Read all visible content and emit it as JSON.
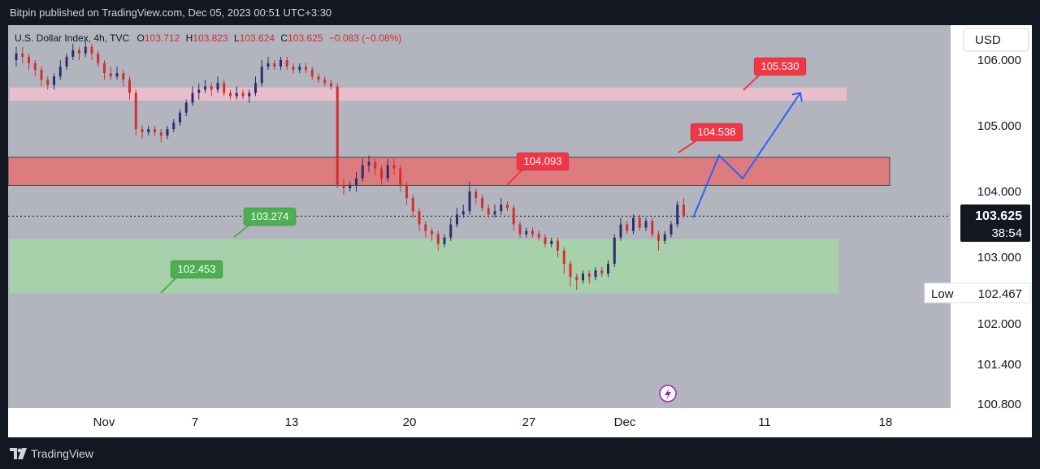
{
  "publisher_line": "Bitpin published on TradingView.com, Dec 05, 2023 00:51 UTC+3:30",
  "brand": "TradingView",
  "header": {
    "symbol": "U.S. Dollar Index, 4h, TVC",
    "open_label": "O",
    "open": "103.712",
    "high_label": "H",
    "high": "103.823",
    "low_label": "L",
    "low": "103.624",
    "close_label": "C",
    "close": "103.625",
    "change": "−0.083 (−0.08%)"
  },
  "currency": "USD",
  "colors": {
    "up": "#2a2e6e",
    "down": "#d32f2f",
    "resistance_zone": "#e57373",
    "support_zone": "#a5d6a7",
    "target_zone": "#f2bfcf",
    "projection": "#2962ff",
    "background": "#b2b5be",
    "red_label": "#f23645",
    "green_label": "#4caf50"
  },
  "chart_data": {
    "type": "candlestick",
    "title": "U.S. Dollar Index, 4h, TVC",
    "ylim": [
      100.8,
      106.3
    ],
    "y_ticks": [
      "106.000",
      "105.000",
      "104.000",
      "103.000",
      "102.000",
      "101.400",
      "100.800"
    ],
    "x_ticks": [
      "Nov",
      "7",
      "13",
      "20",
      "27",
      "Dec",
      "11",
      "18"
    ],
    "last_price": "103.625",
    "countdown": "38:54",
    "low_marker": {
      "label": "Low",
      "value": "102.467"
    },
    "zones": [
      {
        "name": "target",
        "from": 105.38,
        "to": 105.58
      },
      {
        "name": "resistance",
        "from": 104.093,
        "to": 104.52
      },
      {
        "name": "support",
        "from": 102.453,
        "to": 103.274
      }
    ],
    "callouts": [
      {
        "text": "105.530",
        "color": "red",
        "value": 105.53
      },
      {
        "text": "104.538",
        "color": "red",
        "value": 104.538
      },
      {
        "text": "104.093",
        "color": "red",
        "value": 104.093
      },
      {
        "text": "103.274",
        "color": "green",
        "value": 103.274
      },
      {
        "text": "102.453",
        "color": "green",
        "value": 102.453
      }
    ],
    "projection_path": [
      103.6,
      104.55,
      104.2,
      105.5
    ],
    "candles": [
      [
        106.0,
        106.1,
        106.2,
        105.9
      ],
      [
        106.1,
        106.05,
        106.2,
        105.95
      ],
      [
        106.05,
        105.95,
        106.1,
        105.85
      ],
      [
        105.95,
        105.85,
        106.0,
        105.75
      ],
      [
        105.85,
        105.7,
        105.9,
        105.6
      ],
      [
        105.7,
        105.62,
        105.75,
        105.55
      ],
      [
        105.62,
        105.75,
        105.8,
        105.55
      ],
      [
        105.75,
        105.9,
        106.0,
        105.7
      ],
      [
        105.9,
        106.05,
        106.1,
        105.85
      ],
      [
        106.05,
        106.15,
        106.25,
        106.0
      ],
      [
        106.15,
        106.1,
        106.2,
        106.0
      ],
      [
        106.1,
        106.2,
        106.3,
        106.05
      ],
      [
        106.2,
        106.1,
        106.25,
        106.0
      ],
      [
        106.1,
        105.95,
        106.15,
        105.9
      ],
      [
        105.95,
        105.8,
        106.0,
        105.7
      ],
      [
        105.8,
        105.75,
        105.9,
        105.7
      ],
      [
        105.75,
        105.8,
        105.9,
        105.7
      ],
      [
        105.8,
        105.7,
        105.85,
        105.6
      ],
      [
        105.7,
        105.5,
        105.75,
        105.4
      ],
      [
        105.5,
        104.95,
        105.55,
        104.85
      ],
      [
        104.95,
        104.9,
        105.0,
        104.8
      ],
      [
        104.9,
        104.95,
        105.0,
        104.85
      ],
      [
        104.95,
        104.9,
        105.0,
        104.85
      ],
      [
        104.9,
        104.85,
        104.95,
        104.75
      ],
      [
        104.85,
        104.95,
        105.0,
        104.8
      ],
      [
        104.95,
        105.05,
        105.1,
        104.9
      ],
      [
        105.05,
        105.2,
        105.25,
        105.0
      ],
      [
        105.2,
        105.35,
        105.4,
        105.15
      ],
      [
        105.35,
        105.5,
        105.6,
        105.3
      ],
      [
        105.5,
        105.55,
        105.65,
        105.4
      ],
      [
        105.55,
        105.6,
        105.7,
        105.5
      ],
      [
        105.6,
        105.55,
        105.65,
        105.45
      ],
      [
        105.55,
        105.65,
        105.75,
        105.5
      ],
      [
        105.65,
        105.5,
        105.7,
        105.45
      ],
      [
        105.5,
        105.45,
        105.55,
        105.4
      ],
      [
        105.45,
        105.5,
        105.6,
        105.4
      ],
      [
        105.5,
        105.45,
        105.55,
        105.4
      ],
      [
        105.45,
        105.5,
        105.55,
        105.35
      ],
      [
        105.5,
        105.65,
        105.75,
        105.45
      ],
      [
        105.65,
        105.9,
        106.0,
        105.6
      ],
      [
        105.9,
        105.95,
        106.05,
        105.85
      ],
      [
        105.95,
        105.9,
        106.0,
        105.85
      ],
      [
        105.9,
        106.0,
        106.05,
        105.85
      ],
      [
        106.0,
        105.9,
        106.05,
        105.85
      ],
      [
        105.9,
        105.85,
        105.95,
        105.8
      ],
      [
        105.85,
        105.9,
        105.95,
        105.8
      ],
      [
        105.9,
        105.85,
        105.95,
        105.8
      ],
      [
        105.85,
        105.75,
        105.9,
        105.7
      ],
      [
        105.75,
        105.7,
        105.8,
        105.65
      ],
      [
        105.7,
        105.65,
        105.75,
        105.6
      ],
      [
        105.65,
        105.6,
        105.7,
        105.55
      ],
      [
        105.6,
        104.1,
        105.65,
        104.05
      ],
      [
        104.1,
        104.05,
        104.2,
        103.95
      ],
      [
        104.05,
        104.1,
        104.15,
        104.0
      ],
      [
        104.1,
        104.2,
        104.3,
        104.0
      ],
      [
        104.2,
        104.4,
        104.5,
        104.15
      ],
      [
        104.4,
        104.45,
        104.55,
        104.3
      ],
      [
        104.45,
        104.35,
        104.5,
        104.25
      ],
      [
        104.35,
        104.2,
        104.4,
        104.1
      ],
      [
        104.2,
        104.4,
        104.5,
        104.15
      ],
      [
        104.4,
        104.35,
        104.5,
        104.25
      ],
      [
        104.35,
        104.1,
        104.4,
        104.0
      ],
      [
        104.1,
        103.9,
        104.15,
        103.8
      ],
      [
        103.9,
        103.7,
        103.95,
        103.6
      ],
      [
        103.7,
        103.5,
        103.75,
        103.4
      ],
      [
        103.5,
        103.4,
        103.55,
        103.3
      ],
      [
        103.4,
        103.35,
        103.45,
        103.25
      ],
      [
        103.35,
        103.2,
        103.4,
        103.1
      ],
      [
        103.2,
        103.3,
        103.35,
        103.15
      ],
      [
        103.3,
        103.5,
        103.6,
        103.25
      ],
      [
        103.5,
        103.65,
        103.75,
        103.45
      ],
      [
        103.65,
        103.7,
        103.8,
        103.6
      ],
      [
        103.7,
        104.0,
        104.15,
        103.65
      ],
      [
        104.0,
        103.9,
        104.05,
        103.8
      ],
      [
        103.9,
        103.75,
        103.95,
        103.7
      ],
      [
        103.75,
        103.65,
        103.8,
        103.6
      ],
      [
        103.65,
        103.7,
        103.8,
        103.6
      ],
      [
        103.7,
        103.8,
        103.9,
        103.65
      ],
      [
        103.8,
        103.75,
        103.85,
        103.7
      ],
      [
        103.75,
        103.5,
        103.8,
        103.4
      ],
      [
        103.5,
        103.35,
        103.55,
        103.3
      ],
      [
        103.35,
        103.4,
        103.45,
        103.3
      ],
      [
        103.4,
        103.35,
        103.45,
        103.3
      ],
      [
        103.35,
        103.3,
        103.4,
        103.25
      ],
      [
        103.3,
        103.2,
        103.35,
        103.15
      ],
      [
        103.2,
        103.25,
        103.3,
        103.15
      ],
      [
        103.25,
        103.1,
        103.3,
        103.0
      ],
      [
        103.1,
        102.9,
        103.15,
        102.75
      ],
      [
        102.9,
        102.7,
        102.95,
        102.55
      ],
      [
        102.7,
        102.65,
        102.75,
        102.5
      ],
      [
        102.65,
        102.75,
        102.8,
        102.6
      ],
      [
        102.75,
        102.7,
        102.8,
        102.6
      ],
      [
        102.7,
        102.8,
        102.85,
        102.65
      ],
      [
        102.8,
        102.75,
        102.85,
        102.7
      ],
      [
        102.75,
        102.9,
        102.95,
        102.7
      ],
      [
        102.9,
        103.3,
        103.35,
        102.85
      ],
      [
        103.3,
        103.5,
        103.6,
        103.25
      ],
      [
        103.5,
        103.4,
        103.55,
        103.35
      ],
      [
        103.4,
        103.6,
        103.65,
        103.35
      ],
      [
        103.6,
        103.45,
        103.65,
        103.4
      ],
      [
        103.45,
        103.55,
        103.6,
        103.4
      ],
      [
        103.55,
        103.35,
        103.6,
        103.3
      ],
      [
        103.35,
        103.25,
        103.4,
        103.1
      ],
      [
        103.25,
        103.35,
        103.4,
        103.2
      ],
      [
        103.35,
        103.5,
        103.55,
        103.3
      ],
      [
        103.5,
        103.8,
        103.85,
        103.45
      ],
      [
        103.8,
        103.625,
        103.9,
        103.6
      ]
    ]
  }
}
